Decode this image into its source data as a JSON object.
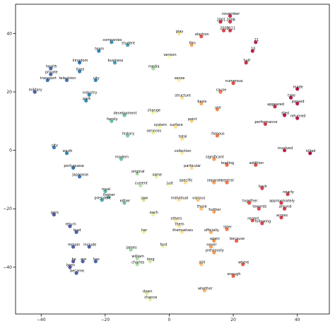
{
  "chart_data": {
    "type": "scatter",
    "title": "",
    "xlabel": "",
    "ylabel": "",
    "xlim": [
      -48,
      50
    ],
    "ylim": [
      -56,
      50
    ],
    "xticks": [
      -40,
      -20,
      0,
      20,
      40
    ],
    "yticks": [
      -40,
      -20,
      0,
      20,
      40
    ],
    "xtick_labels": [
      "−40",
      "−20",
      "0",
      "20",
      "40"
    ],
    "ytick_labels": [
      "−40",
      "−20",
      "0",
      "20",
      "40"
    ],
    "grid": false,
    "legend": "none",
    "colormap": "Spectral",
    "points": [
      {
        "label": "companies",
        "x": -18,
        "y": 37,
        "c": 0.12
      },
      {
        "label": "student",
        "x": -13,
        "y": 36,
        "c": 0.15
      },
      {
        "label": "team",
        "x": -22,
        "y": 34,
        "c": 0.1
      },
      {
        "label": "kingdom",
        "x": -28,
        "y": 30,
        "c": 0.08
      },
      {
        "label": "business",
        "x": -17,
        "y": 30,
        "c": 0.14
      },
      {
        "label": "media",
        "x": -5,
        "y": 28,
        "c": 0.3
      },
      {
        "label": "version",
        "x": 0,
        "y": 32,
        "c": 0.5
      },
      {
        "label": "play",
        "x": 3,
        "y": 40,
        "c": 0.6
      },
      {
        "label": "election",
        "x": 10,
        "y": 39,
        "c": 0.85
      },
      {
        "label": "film",
        "x": 7,
        "y": 36,
        "c": 0.7
      },
      {
        "label": "2001",
        "x": 16,
        "y": 44,
        "c": 0.92
      },
      {
        "label": "2006",
        "x": 19,
        "y": 44,
        "c": 0.9
      },
      {
        "label": "2011",
        "x": 19,
        "y": 41,
        "c": 0.9
      },
      {
        "label": "2003",
        "x": 17,
        "y": 41,
        "c": 0.88
      },
      {
        "label": "november",
        "x": 19,
        "y": 46,
        "c": 0.93
      },
      {
        "label": "21",
        "x": 27,
        "y": 37,
        "c": 0.95
      },
      {
        "label": "10",
        "x": 26,
        "y": 34,
        "c": 0.94
      },
      {
        "label": "half",
        "x": 24,
        "y": 30,
        "c": 0.92
      },
      {
        "label": "numerous",
        "x": 20,
        "y": 23,
        "c": 0.86
      },
      {
        "label": "health",
        "x": -37,
        "y": 28,
        "c": 0.05
      },
      {
        "label": "private",
        "x": -37,
        "y": 26,
        "c": 0.05
      },
      {
        "label": "military",
        "x": -42,
        "y": 20,
        "c": 0.03
      },
      {
        "label": "transport",
        "x": -38,
        "y": 24,
        "c": 0.06
      },
      {
        "label": "television",
        "x": -32,
        "y": 24,
        "c": 0.07
      },
      {
        "label": "lines",
        "x": -28,
        "y": 27,
        "c": 0.09
      },
      {
        "label": "city",
        "x": -23,
        "y": 24,
        "c": 0.1
      },
      {
        "label": "industry",
        "x": -25,
        "y": 19,
        "c": 0.11
      },
      {
        "label": "park",
        "x": -26,
        "y": 17,
        "c": 0.11
      },
      {
        "label": "system",
        "x": -3,
        "y": 8,
        "c": 0.45
      },
      {
        "label": "change",
        "x": -5,
        "y": 13,
        "c": 0.4
      },
      {
        "label": "sense",
        "x": 3,
        "y": 24,
        "c": 0.55
      },
      {
        "label": "structure",
        "x": 4,
        "y": 18,
        "c": 0.6
      },
      {
        "label": "basis",
        "x": 10,
        "y": 16,
        "c": 0.7
      },
      {
        "label": "cause",
        "x": 16,
        "y": 20,
        "c": 0.78
      },
      {
        "label": "use",
        "x": 15,
        "y": 14,
        "c": 0.75
      },
      {
        "label": "point",
        "x": 7,
        "y": 10,
        "c": 0.62
      },
      {
        "label": "surface",
        "x": 2,
        "y": 8,
        "c": 0.58
      },
      {
        "label": "total",
        "x": 4,
        "y": 4,
        "c": 0.6
      },
      {
        "label": "family",
        "x": -18,
        "y": 10,
        "c": 0.2
      },
      {
        "label": "development",
        "x": -14,
        "y": 12,
        "c": 0.22
      },
      {
        "label": "history",
        "x": -13,
        "y": 5,
        "c": 0.25
      },
      {
        "label": "services",
        "x": -5,
        "y": 6,
        "c": 0.4
      },
      {
        "label": "appeared",
        "x": 33,
        "y": 15,
        "c": 0.93
      },
      {
        "label": "died",
        "x": 36,
        "y": 12,
        "c": 0.95
      },
      {
        "label": "made",
        "x": 40,
        "y": 21,
        "c": 0.96
      },
      {
        "label": "take",
        "x": 38,
        "y": 18,
        "c": 0.96
      },
      {
        "label": "passed",
        "x": 40,
        "y": 16,
        "c": 0.95
      },
      {
        "label": "returned",
        "x": 40,
        "y": 11,
        "c": 0.95
      },
      {
        "label": "killed",
        "x": 44,
        "y": -1,
        "c": 0.98
      },
      {
        "label": "involved",
        "x": 36,
        "y": 0,
        "c": 0.94
      },
      {
        "label": "performance",
        "x": 30,
        "y": 9,
        "c": 0.9
      },
      {
        "label": "famous",
        "x": 15,
        "y": 5,
        "c": 0.78
      },
      {
        "label": "collection",
        "x": 4,
        "y": -1,
        "c": 0.55
      },
      {
        "label": "significant",
        "x": 14,
        "y": -3,
        "c": 0.73
      },
      {
        "label": "leading",
        "x": 18,
        "y": -5,
        "c": 0.8
      },
      {
        "label": "addition",
        "x": 27,
        "y": -5,
        "c": 0.86
      },
      {
        "label": "portuguese",
        "x": -30,
        "y": -6,
        "c": 0.08
      },
      {
        "label": "japanese",
        "x": -28,
        "y": -9,
        "c": 0.08
      },
      {
        "label": "modern",
        "x": -15,
        "y": -3,
        "c": 0.22
      },
      {
        "label": "royal",
        "x": -20,
        "y": -14,
        "c": 0.18
      },
      {
        "label": "former",
        "x": -19,
        "y": -16,
        "c": 0.18
      },
      {
        "label": "original",
        "x": -10,
        "y": -8,
        "c": 0.3
      },
      {
        "label": "current",
        "x": -9,
        "y": -12,
        "c": 0.32
      },
      {
        "label": "same",
        "x": -4,
        "y": -9,
        "c": 0.4
      },
      {
        "label": "particular",
        "x": 7,
        "y": -6,
        "c": 0.6
      },
      {
        "label": "specific",
        "x": 5,
        "y": -11,
        "c": 0.6
      },
      {
        "label": "just",
        "x": 0,
        "y": -12,
        "c": 0.5
      },
      {
        "label": "individual",
        "x": 3,
        "y": -17,
        "c": 0.58
      },
      {
        "label": "various",
        "x": 9,
        "y": -17,
        "c": 0.65
      },
      {
        "label": "separate",
        "x": 14,
        "y": -11,
        "c": 0.72
      },
      {
        "label": "central",
        "x": 18,
        "y": -11,
        "c": 0.78
      },
      {
        "label": "president",
        "x": -21,
        "y": -17,
        "c": 0.15
      },
      {
        "label": "either",
        "x": -14,
        "y": -18,
        "c": 0.22
      },
      {
        "label": "saw",
        "x": -8,
        "y": -17,
        "c": 0.35
      },
      {
        "label": "each",
        "x": -5,
        "y": -22,
        "c": 0.4
      },
      {
        "label": "those",
        "x": 10,
        "y": -20,
        "c": 0.66
      },
      {
        "label": "further",
        "x": 14,
        "y": -21,
        "c": 0.72
      },
      {
        "label": "others",
        "x": 2,
        "y": -24,
        "c": 0.55
      },
      {
        "label": "them",
        "x": 3,
        "y": -26,
        "c": 0.57
      },
      {
        "label": "back",
        "x": 29,
        "y": -13,
        "c": 0.88
      },
      {
        "label": "nearly",
        "x": 37,
        "y": -15,
        "c": 0.9
      },
      {
        "label": "together",
        "x": 25,
        "y": -18,
        "c": 0.85
      },
      {
        "label": "towards",
        "x": 28,
        "y": -20,
        "c": 0.87
      },
      {
        "label": "approximately",
        "x": 35,
        "y": -18,
        "c": 0.9
      },
      {
        "label": "around",
        "x": 36,
        "y": -20,
        "c": 0.9
      },
      {
        "label": "recent",
        "x": 26,
        "y": -24,
        "c": 0.86
      },
      {
        "label": "across",
        "x": 35,
        "y": -23,
        "c": 0.9
      },
      {
        "label": "following",
        "x": 29,
        "y": -25,
        "c": 0.88
      },
      {
        "label": "themselves",
        "x": 4,
        "y": -28,
        "c": 0.58
      },
      {
        "label": "officially",
        "x": 13,
        "y": -28,
        "c": 0.7
      },
      {
        "label": "later",
        "x": 18,
        "y": -27,
        "c": 0.78
      },
      {
        "label": "because",
        "x": 21,
        "y": -31,
        "c": 0.82
      },
      {
        "label": "again",
        "x": 14,
        "y": -31,
        "c": 0.73
      },
      {
        "label": "never",
        "x": 13,
        "y": -33,
        "c": 0.72
      },
      {
        "label": "previously",
        "x": 14,
        "y": -35,
        "c": 0.73
      },
      {
        "label": "return",
        "x": -31,
        "y": -26,
        "c": 0.03
      },
      {
        "label": "lead",
        "x": -29,
        "y": -28,
        "c": 0.03
      },
      {
        "label": "include",
        "x": -25,
        "y": -33,
        "c": 0.04
      },
      {
        "label": "remain",
        "x": -30,
        "y": -33,
        "c": 0.03
      },
      {
        "label": "he",
        "x": -30,
        "y": -38,
        "c": 0.02
      },
      {
        "label": "are",
        "x": -27,
        "y": -38,
        "c": 0.03
      },
      {
        "label": "has",
        "x": -23,
        "y": -38,
        "c": 0.04
      },
      {
        "label": "been",
        "x": -31,
        "y": -40,
        "c": 0.02
      },
      {
        "label": "became",
        "x": -29,
        "y": -42,
        "c": 0.03
      },
      {
        "label": "her",
        "x": -8,
        "y": -28,
        "c": 0.4
      },
      {
        "label": "ford",
        "x": -2,
        "y": -33,
        "c": 0.45
      },
      {
        "label": "james",
        "x": -12,
        "y": -34,
        "c": 0.28
      },
      {
        "label": "william",
        "x": -10,
        "y": -37,
        "c": 0.3
      },
      {
        "label": "charles",
        "x": -10,
        "y": -39,
        "c": 0.3
      },
      {
        "label": "king",
        "x": -6,
        "y": -38,
        "c": 0.36
      },
      {
        "label": "still",
        "x": 10,
        "y": -39,
        "c": 0.66
      },
      {
        "label": "where",
        "x": 23,
        "y": -39,
        "c": 0.84
      },
      {
        "label": "whether",
        "x": 11,
        "y": -48,
        "c": 0.68
      },
      {
        "label": "enough",
        "x": 20,
        "y": -43,
        "c": 0.82
      },
      {
        "label": "down",
        "x": -7,
        "y": -49,
        "c": 0.38
      },
      {
        "label": "chance",
        "x": -6,
        "y": -51,
        "c": 0.38
      },
      {
        "label": "pers",
        "x": -36,
        "y": -22,
        "c": 0.02
      },
      {
        "label": "city",
        "x": -36,
        "y": 1,
        "c": 0.08
      },
      {
        "label": "south",
        "x": -32,
        "y": -1,
        "c": 0.1
      }
    ]
  }
}
